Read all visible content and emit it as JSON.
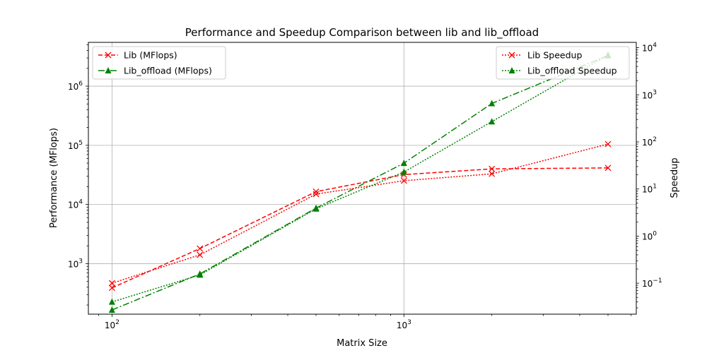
{
  "chart_data": {
    "type": "line",
    "title": "Performance and Speedup Comparison between lib and lib_offload",
    "xlabel": "Matrix Size",
    "ylabel_left": "Performance (MFlops)",
    "ylabel_right": "Speedup",
    "x_scale": "log",
    "y_left_scale": "log",
    "y_right_scale": "log",
    "xlim": [
      83,
      6250
    ],
    "ylim_left": [
      140,
      5500000
    ],
    "ylim_right": [
      0.022,
      13000
    ],
    "x_ticks": [
      {
        "value": 100,
        "base": "10",
        "exp": "2"
      },
      {
        "value": 1000,
        "base": "10",
        "exp": "3"
      }
    ],
    "y_left_ticks": [
      {
        "value": 1000,
        "base": "10",
        "exp": "3"
      },
      {
        "value": 10000,
        "base": "10",
        "exp": "4"
      },
      {
        "value": 100000,
        "base": "10",
        "exp": "5"
      },
      {
        "value": 1000000,
        "base": "10",
        "exp": "6"
      }
    ],
    "y_right_ticks": [
      {
        "value": 0.1,
        "base": "10",
        "exp": "−1"
      },
      {
        "value": 1,
        "base": "10",
        "exp": "0"
      },
      {
        "value": 10,
        "base": "10",
        "exp": "1"
      },
      {
        "value": 100,
        "base": "10",
        "exp": "2"
      },
      {
        "value": 1000,
        "base": "10",
        "exp": "3"
      },
      {
        "value": 10000,
        "base": "10",
        "exp": "4"
      }
    ],
    "grid": true,
    "x": [
      100,
      200,
      500,
      1000,
      2000,
      5000
    ],
    "series": [
      {
        "name": "Lib (MFlops)",
        "axis": "left",
        "color": "#ff0000",
        "dash": "dashed",
        "marker": "x",
        "values": [
          390,
          1800,
          16500,
          32000,
          40000,
          41500
        ]
      },
      {
        "name": "Lib_offload (MFlops)",
        "axis": "left",
        "color": "#008000",
        "dash": "dashdot",
        "marker": "triangle",
        "values": [
          165,
          670,
          8700,
          50000,
          510000,
          3300000
        ]
      },
      {
        "name": "Lib Speedup",
        "axis": "right",
        "color": "#ff0000",
        "dash": "dotted",
        "marker": "x",
        "values": [
          0.1,
          0.4,
          7.8,
          15,
          21,
          90
        ]
      },
      {
        "name": "Lib_offload Speedup",
        "axis": "right",
        "color": "#008000",
        "dash": "dotted",
        "marker": "triangle",
        "values": [
          0.04,
          0.15,
          3.8,
          23,
          270,
          7000
        ]
      }
    ],
    "legend_left": {
      "placement": "top-left",
      "entries": [
        "Lib (MFlops)",
        "Lib_offload (MFlops)"
      ]
    },
    "legend_right": {
      "placement": "top-right",
      "entries": [
        "Lib Speedup",
        "Lib_offload Speedup"
      ]
    }
  }
}
